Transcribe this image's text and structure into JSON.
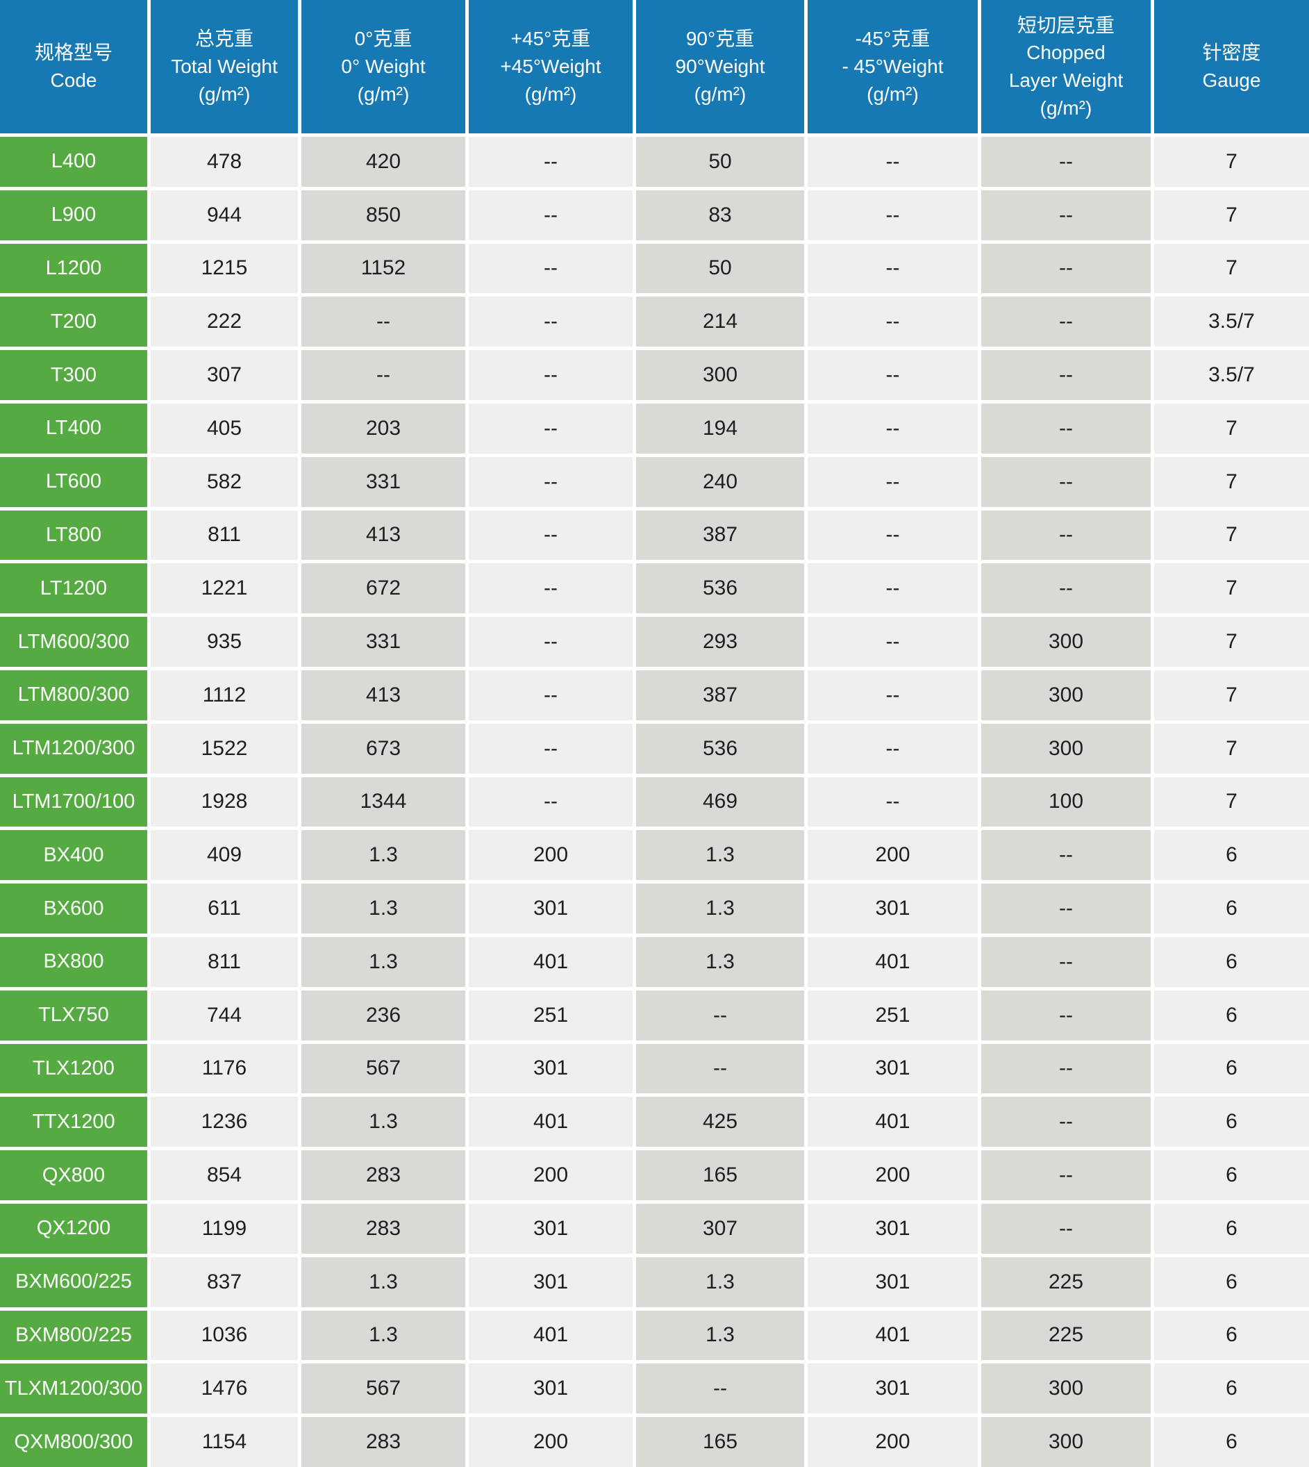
{
  "colors": {
    "header_blue": "#1779b4",
    "code_green": "#55aa41",
    "column_light_gray": "#efefed",
    "column_dark_gray": "#d9dad6",
    "grid_white": "#ffffff",
    "value_text": "#1e1e1e",
    "header_text": "#ffffff"
  },
  "table": {
    "columns": [
      {
        "key": "code",
        "shade": "green",
        "lines": [
          "规格型号",
          "Code"
        ]
      },
      {
        "key": "total",
        "shade": "light",
        "lines": [
          "总克重",
          "Total Weight",
          "(g/m²)"
        ]
      },
      {
        "key": "deg0",
        "shade": "dark",
        "lines": [
          "0°克重",
          "0° Weight",
          "(g/m²)"
        ]
      },
      {
        "key": "plus45",
        "shade": "light",
        "lines": [
          "+45°克重",
          "+45°Weight",
          "(g/m²)"
        ]
      },
      {
        "key": "deg90",
        "shade": "dark",
        "lines": [
          "90°克重",
          "90°Weight",
          "(g/m²)"
        ]
      },
      {
        "key": "minus45",
        "shade": "light",
        "lines": [
          "-45°克重",
          "- 45°Weight",
          "(g/m²)"
        ]
      },
      {
        "key": "chopped",
        "shade": "dark",
        "lines": [
          "短切层克重",
          "Chopped",
          "Layer Weight",
          "(g/m²)"
        ]
      },
      {
        "key": "gauge",
        "shade": "light",
        "lines": [
          "针密度",
          "Gauge"
        ]
      }
    ],
    "rows": [
      [
        "L400",
        "478",
        "420",
        "--",
        "50",
        "--",
        "--",
        "7"
      ],
      [
        "L900",
        "944",
        "850",
        "--",
        "83",
        "--",
        "--",
        "7"
      ],
      [
        "L1200",
        "1215",
        "1152",
        "--",
        "50",
        "--",
        "--",
        "7"
      ],
      [
        "T200",
        "222",
        "--",
        "--",
        "214",
        "--",
        "--",
        "3.5/7"
      ],
      [
        "T300",
        "307",
        "--",
        "--",
        "300",
        "--",
        "--",
        "3.5/7"
      ],
      [
        "LT400",
        "405",
        "203",
        "--",
        "194",
        "--",
        "--",
        "7"
      ],
      [
        "LT600",
        "582",
        "331",
        "--",
        "240",
        "--",
        "--",
        "7"
      ],
      [
        "LT800",
        "811",
        "413",
        "--",
        "387",
        "--",
        "--",
        "7"
      ],
      [
        "LT1200",
        "1221",
        "672",
        "--",
        "536",
        "--",
        "--",
        "7"
      ],
      [
        "LTM600/300",
        "935",
        "331",
        "--",
        "293",
        "--",
        "300",
        "7"
      ],
      [
        "LTM800/300",
        "1112",
        "413",
        "--",
        "387",
        "--",
        "300",
        "7"
      ],
      [
        "LTM1200/300",
        "1522",
        "673",
        "--",
        "536",
        "--",
        "300",
        "7"
      ],
      [
        "LTM1700/100",
        "1928",
        "1344",
        "--",
        "469",
        "--",
        "100",
        "7"
      ],
      [
        "BX400",
        "409",
        "1.3",
        "200",
        "1.3",
        "200",
        "--",
        "6"
      ],
      [
        "BX600",
        "611",
        "1.3",
        "301",
        "1.3",
        "301",
        "--",
        "6"
      ],
      [
        "BX800",
        "811",
        "1.3",
        "401",
        "1.3",
        "401",
        "--",
        "6"
      ],
      [
        "TLX750",
        "744",
        "236",
        "251",
        "--",
        "251",
        "--",
        "6"
      ],
      [
        "TLX1200",
        "1176",
        "567",
        "301",
        "--",
        "301",
        "--",
        "6"
      ],
      [
        "TTX1200",
        "1236",
        "1.3",
        "401",
        "425",
        "401",
        "--",
        "6"
      ],
      [
        "QX800",
        "854",
        "283",
        "200",
        "165",
        "200",
        "--",
        "6"
      ],
      [
        "QX1200",
        "1199",
        "283",
        "301",
        "307",
        "301",
        "--",
        "6"
      ],
      [
        "BXM600/225",
        "837",
        "1.3",
        "301",
        "1.3",
        "301",
        "225",
        "6"
      ],
      [
        "BXM800/225",
        "1036",
        "1.3",
        "401",
        "1.3",
        "401",
        "225",
        "6"
      ],
      [
        "TLXM1200/300",
        "1476",
        "567",
        "301",
        "--",
        "301",
        "300",
        "6"
      ],
      [
        "QXM800/300",
        "1154",
        "283",
        "200",
        "165",
        "200",
        "300",
        "6"
      ]
    ]
  }
}
